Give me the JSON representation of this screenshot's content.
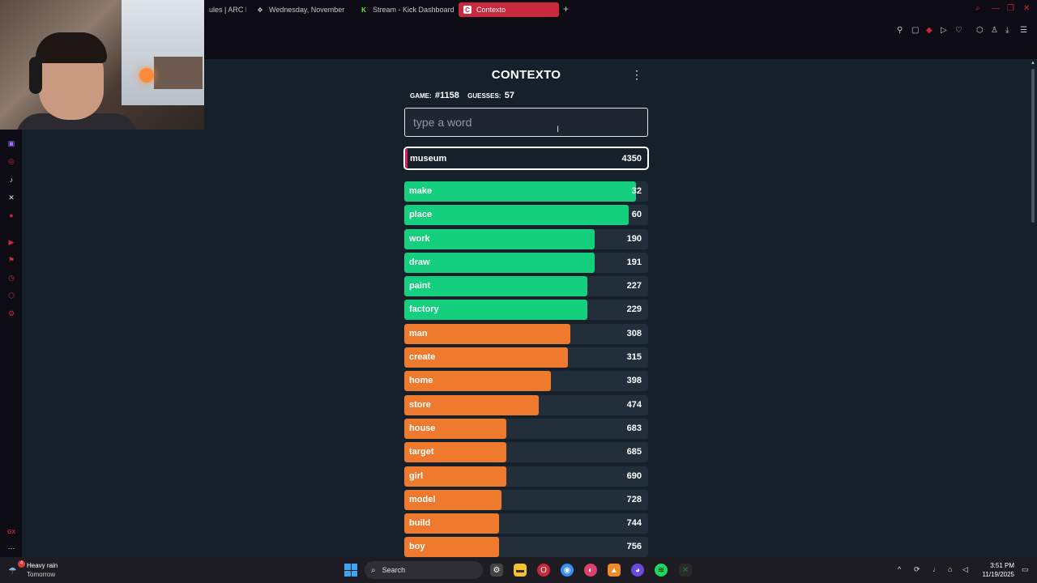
{
  "browser": {
    "tabs": [
      {
        "label": "ules | ARC R",
        "icon": "",
        "active": false
      },
      {
        "label": "Wednesday, November",
        "icon": "✥",
        "active": false
      },
      {
        "label": "Stream - Kick Dashboard",
        "icon": "K",
        "active": false
      },
      {
        "label": "Contexto",
        "icon": "C",
        "active": true
      }
    ],
    "new_tab_label": "+"
  },
  "app": {
    "title": "CONTEXTO",
    "game_label": "GAME:",
    "game_number": "#1158",
    "guesses_label": "GUESSES:",
    "guesses_count": "57",
    "input_placeholder": "type a word",
    "last_guess": {
      "word": "museum",
      "distance": "4350"
    },
    "guesses": [
      {
        "word": "make",
        "distance": "32",
        "proximity": 0.95,
        "color": "green"
      },
      {
        "word": "place",
        "distance": "60",
        "proximity": 0.92,
        "color": "green"
      },
      {
        "word": "work",
        "distance": "190",
        "proximity": 0.78,
        "color": "green"
      },
      {
        "word": "draw",
        "distance": "191",
        "proximity": 0.78,
        "color": "green"
      },
      {
        "word": "paint",
        "distance": "227",
        "proximity": 0.75,
        "color": "green"
      },
      {
        "word": "factory",
        "distance": "229",
        "proximity": 0.75,
        "color": "green"
      },
      {
        "word": "man",
        "distance": "308",
        "proximity": 0.68,
        "color": "orange"
      },
      {
        "word": "create",
        "distance": "315",
        "proximity": 0.67,
        "color": "orange"
      },
      {
        "word": "home",
        "distance": "398",
        "proximity": 0.6,
        "color": "orange"
      },
      {
        "word": "store",
        "distance": "474",
        "proximity": 0.55,
        "color": "orange"
      },
      {
        "word": "house",
        "distance": "683",
        "proximity": 0.42,
        "color": "orange"
      },
      {
        "word": "target",
        "distance": "685",
        "proximity": 0.42,
        "color": "orange"
      },
      {
        "word": "girl",
        "distance": "690",
        "proximity": 0.42,
        "color": "orange"
      },
      {
        "word": "model",
        "distance": "728",
        "proximity": 0.4,
        "color": "orange"
      },
      {
        "word": "build",
        "distance": "744",
        "proximity": 0.39,
        "color": "orange"
      },
      {
        "word": "boy",
        "distance": "756",
        "proximity": 0.39,
        "color": "orange"
      }
    ]
  },
  "colors": {
    "green": "#14cf7d",
    "orange": "#ef7a2e",
    "accent": "#d21f63"
  },
  "taskbar": {
    "weather_title": "Heavy rain",
    "weather_sub": "Tomorrow",
    "weather_badge": "4",
    "search_label": "Search",
    "time": "3:51 PM",
    "date": "11/19/2025"
  },
  "sidebar_bottom_label": "GX"
}
